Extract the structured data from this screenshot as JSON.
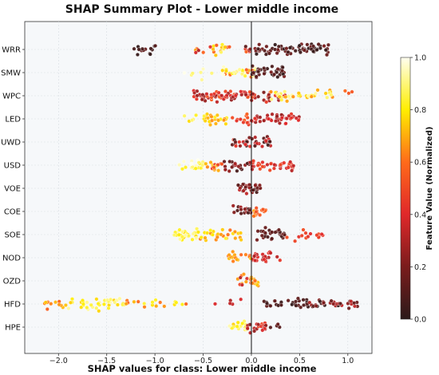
{
  "chart_data": {
    "type": "scatter",
    "title": "SHAP Summary Plot - Lower middle income",
    "xlabel": "SHAP values for class: Lower middle income",
    "xlim": [
      -2.35,
      1.25
    ],
    "xticks": [
      -2.0,
      -1.5,
      -1.0,
      -0.5,
      0.0,
      0.5,
      1.0
    ],
    "xtick_labels": [
      "−2.0",
      "−1.5",
      "−1.0",
      "−0.5",
      "0.0",
      "0.5",
      "1.0"
    ],
    "features": [
      "WRR",
      "SMW",
      "WPC",
      "LED",
      "UWD",
      "USD",
      "VOE",
      "COE",
      "SOE",
      "NOD",
      "OZD",
      "HFD",
      "HPE"
    ],
    "grid": true,
    "colorbar": {
      "label": "Feature Value (Normalized)",
      "range": [
        0.0,
        1.0
      ],
      "ticks": [
        0.0,
        0.2,
        0.4,
        0.6,
        0.8,
        1.0
      ],
      "tick_labels": [
        "0.0",
        "0.2",
        "0.4",
        "0.6",
        "0.8",
        "1.0"
      ]
    },
    "feature_distributions": [
      {
        "feature": "WRR",
        "clusters": [
          {
            "x": [
              -1.25,
              -0.95
            ],
            "n": 14,
            "v": [
              0.0,
              0.15
            ]
          },
          {
            "x": [
              -0.7,
              -0.45
            ],
            "n": 6,
            "v": [
              0.3,
              0.7
            ]
          },
          {
            "x": [
              -0.45,
              -0.2
            ],
            "n": 14,
            "v": [
              0.35,
              0.9
            ]
          },
          {
            "x": [
              -0.1,
              0.05
            ],
            "n": 8,
            "v": [
              0.05,
              0.6
            ]
          },
          {
            "x": [
              0.05,
              0.8
            ],
            "n": 70,
            "v": [
              0.0,
              0.2
            ]
          }
        ]
      },
      {
        "feature": "SMW",
        "clusters": [
          {
            "x": [
              -0.7,
              -0.3
            ],
            "n": 8,
            "v": [
              0.85,
              1.0
            ]
          },
          {
            "x": [
              -0.3,
              0.05
            ],
            "n": 35,
            "v": [
              0.55,
              1.0
            ]
          },
          {
            "x": [
              0.0,
              0.35
            ],
            "n": 40,
            "v": [
              0.0,
              0.2
            ]
          }
        ]
      },
      {
        "feature": "WPC",
        "clusters": [
          {
            "x": [
              -0.6,
              0.05
            ],
            "n": 75,
            "v": [
              0.25,
              0.55
            ]
          },
          {
            "x": [
              0.05,
              0.35
            ],
            "n": 20,
            "v": [
              0.2,
              0.5
            ]
          },
          {
            "x": [
              0.2,
              0.85
            ],
            "n": 40,
            "v": [
              0.65,
              0.95
            ]
          },
          {
            "x": [
              0.9,
              1.05
            ],
            "n": 3,
            "v": [
              0.5,
              0.6
            ]
          }
        ]
      },
      {
        "feature": "LED",
        "clusters": [
          {
            "x": [
              -0.7,
              -0.55
            ],
            "n": 5,
            "v": [
              0.75,
              0.9
            ]
          },
          {
            "x": [
              -0.5,
              -0.25
            ],
            "n": 25,
            "v": [
              0.65,
              0.85
            ]
          },
          {
            "x": [
              -0.2,
              0.0
            ],
            "n": 12,
            "v": [
              0.4,
              0.6
            ]
          },
          {
            "x": [
              0.0,
              0.5
            ],
            "n": 45,
            "v": [
              0.25,
              0.45
            ]
          }
        ]
      },
      {
        "feature": "UWD",
        "clusters": [
          {
            "x": [
              -0.2,
              0.2
            ],
            "n": 40,
            "v": [
              0.05,
              0.45
            ]
          }
        ]
      },
      {
        "feature": "USD",
        "clusters": [
          {
            "x": [
              -0.75,
              -0.5
            ],
            "n": 22,
            "v": [
              0.8,
              1.0
            ]
          },
          {
            "x": [
              -0.5,
              -0.3
            ],
            "n": 15,
            "v": [
              0.45,
              0.75
            ]
          },
          {
            "x": [
              -0.3,
              0.0
            ],
            "n": 22,
            "v": [
              0.05,
              0.3
            ]
          },
          {
            "x": [
              0.0,
              0.45
            ],
            "n": 40,
            "v": [
              0.3,
              0.5
            ]
          }
        ]
      },
      {
        "feature": "VOE",
        "clusters": [
          {
            "x": [
              -0.15,
              0.1
            ],
            "n": 35,
            "v": [
              0.05,
              0.35
            ]
          }
        ]
      },
      {
        "feature": "COE",
        "clusters": [
          {
            "x": [
              -0.2,
              0.0
            ],
            "n": 20,
            "v": [
              0.05,
              0.3
            ]
          },
          {
            "x": [
              0.0,
              0.15
            ],
            "n": 18,
            "v": [
              0.5,
              0.7
            ]
          }
        ]
      },
      {
        "feature": "SOE",
        "clusters": [
          {
            "x": [
              -0.8,
              -0.55
            ],
            "n": 30,
            "v": [
              0.75,
              0.95
            ]
          },
          {
            "x": [
              -0.55,
              -0.1
            ],
            "n": 30,
            "v": [
              0.6,
              0.85
            ]
          },
          {
            "x": [
              0.05,
              0.35
            ],
            "n": 30,
            "v": [
              0.05,
              0.2
            ]
          },
          {
            "x": [
              0.35,
              0.75
            ],
            "n": 15,
            "v": [
              0.4,
              0.55
            ]
          }
        ]
      },
      {
        "feature": "NOD",
        "clusters": [
          {
            "x": [
              -0.25,
              0.0
            ],
            "n": 18,
            "v": [
              0.55,
              0.75
            ]
          },
          {
            "x": [
              0.0,
              0.3
            ],
            "n": 25,
            "v": [
              0.3,
              0.45
            ]
          }
        ]
      },
      {
        "feature": "OZD",
        "clusters": [
          {
            "x": [
              -0.15,
              0.0
            ],
            "n": 12,
            "v": [
              0.3,
              0.7
            ]
          },
          {
            "x": [
              0.0,
              0.1
            ],
            "n": 12,
            "v": [
              0.6,
              0.75
            ]
          }
        ]
      },
      {
        "feature": "HFD",
        "clusters": [
          {
            "x": [
              -2.2,
              -1.9
            ],
            "n": 12,
            "v": [
              0.55,
              0.75
            ]
          },
          {
            "x": [
              -1.9,
              -1.3
            ],
            "n": 40,
            "v": [
              0.75,
              1.0
            ]
          },
          {
            "x": [
              -1.3,
              -0.6
            ],
            "n": 18,
            "v": [
              0.5,
              0.9
            ]
          },
          {
            "x": [
              -0.4,
              -0.1
            ],
            "n": 5,
            "v": [
              0.3,
              0.45
            ]
          },
          {
            "x": [
              0.05,
              0.65
            ],
            "n": 30,
            "v": [
              0.0,
              0.15
            ]
          },
          {
            "x": [
              0.6,
              1.1
            ],
            "n": 35,
            "v": [
              0.0,
              0.35
            ]
          }
        ]
      },
      {
        "feature": "HPE",
        "clusters": [
          {
            "x": [
              -0.25,
              -0.05
            ],
            "n": 20,
            "v": [
              0.75,
              0.95
            ]
          },
          {
            "x": [
              -0.05,
              0.15
            ],
            "n": 22,
            "v": [
              0.15,
              0.5
            ]
          },
          {
            "x": [
              0.15,
              0.3
            ],
            "n": 5,
            "v": [
              0.05,
              0.2
            ]
          }
        ]
      }
    ]
  }
}
